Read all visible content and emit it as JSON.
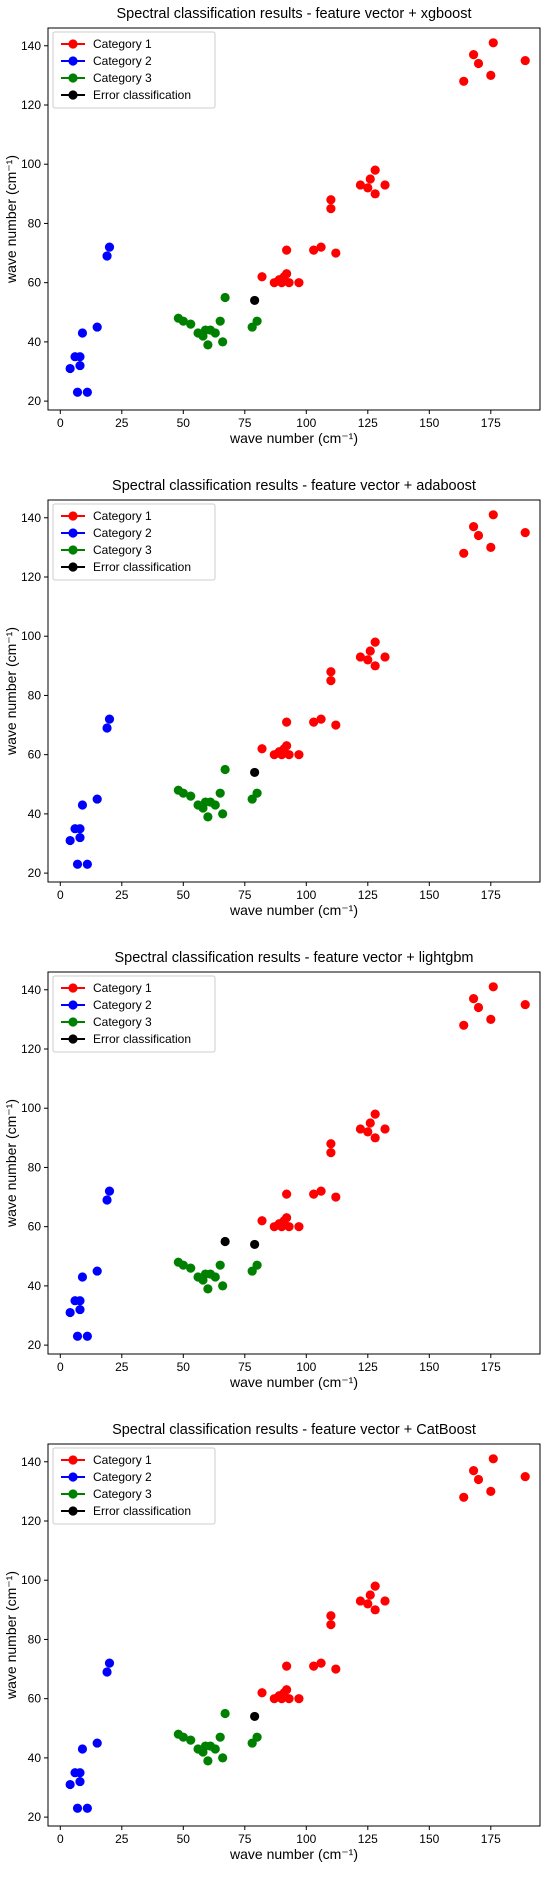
{
  "chart_data": [
    {
      "type": "scatter",
      "title": "Spectral classification results - feature vector + xgboost",
      "xlabel": "wave number (cm⁻¹)",
      "ylabel": "wave number (cm⁻¹)",
      "xlim": [
        -5,
        195
      ],
      "ylim": [
        17,
        146
      ],
      "xticks": [
        0,
        25,
        50,
        75,
        100,
        125,
        150,
        175
      ],
      "yticks": [
        20,
        40,
        60,
        80,
        100,
        120,
        140
      ],
      "grid": false,
      "legend_position": "top-left",
      "series": [
        {
          "name": "Category 1",
          "color": "#ff0000",
          "points": [
            [
              82,
              62
            ],
            [
              87,
              60
            ],
            [
              89,
              61
            ],
            [
              90,
              60
            ],
            [
              91,
              62
            ],
            [
              92,
              63
            ],
            [
              93,
              60
            ],
            [
              92,
              71
            ],
            [
              97,
              60
            ],
            [
              103,
              71
            ],
            [
              106,
              72
            ],
            [
              110,
              85
            ],
            [
              110,
              88
            ],
            [
              112,
              70
            ],
            [
              122,
              93
            ],
            [
              125,
              92
            ],
            [
              126,
              95
            ],
            [
              128,
              90
            ],
            [
              128,
              98
            ],
            [
              132,
              93
            ],
            [
              164,
              128
            ],
            [
              168,
              137
            ],
            [
              170,
              134
            ],
            [
              175,
              130
            ],
            [
              176,
              141
            ],
            [
              189,
              135
            ]
          ]
        },
        {
          "name": "Category 2",
          "color": "#0000ff",
          "points": [
            [
              4,
              31
            ],
            [
              6,
              35
            ],
            [
              7,
              23
            ],
            [
              8,
              35
            ],
            [
              8,
              32
            ],
            [
              9,
              43
            ],
            [
              11,
              23
            ],
            [
              15,
              45
            ],
            [
              19,
              69
            ],
            [
              20,
              72
            ]
          ]
        },
        {
          "name": "Category 3",
          "color": "#008000",
          "points": [
            [
              48,
              48
            ],
            [
              50,
              47
            ],
            [
              53,
              46
            ],
            [
              56,
              43
            ],
            [
              58,
              42
            ],
            [
              59,
              44
            ],
            [
              60,
              39
            ],
            [
              61,
              44
            ],
            [
              63,
              43
            ],
            [
              65,
              47
            ],
            [
              66,
              40
            ],
            [
              67,
              55
            ],
            [
              78,
              45
            ],
            [
              80,
              47
            ]
          ]
        },
        {
          "name": "Error classification",
          "color": "#000000",
          "points": [
            [
              79,
              54
            ]
          ]
        }
      ]
    },
    {
      "type": "scatter",
      "title": "Spectral classification results - feature vector + adaboost",
      "xlabel": "wave number (cm⁻¹)",
      "ylabel": "wave number (cm⁻¹)",
      "xlim": [
        -5,
        195
      ],
      "ylim": [
        17,
        146
      ],
      "xticks": [
        0,
        25,
        50,
        75,
        100,
        125,
        150,
        175
      ],
      "yticks": [
        20,
        40,
        60,
        80,
        100,
        120,
        140
      ],
      "grid": false,
      "legend_position": "top-left",
      "series": [
        {
          "name": "Category 1",
          "color": "#ff0000",
          "points": [
            [
              82,
              62
            ],
            [
              87,
              60
            ],
            [
              89,
              61
            ],
            [
              90,
              60
            ],
            [
              91,
              62
            ],
            [
              92,
              63
            ],
            [
              93,
              60
            ],
            [
              92,
              71
            ],
            [
              97,
              60
            ],
            [
              103,
              71
            ],
            [
              106,
              72
            ],
            [
              110,
              85
            ],
            [
              110,
              88
            ],
            [
              112,
              70
            ],
            [
              122,
              93
            ],
            [
              125,
              92
            ],
            [
              126,
              95
            ],
            [
              128,
              90
            ],
            [
              128,
              98
            ],
            [
              132,
              93
            ],
            [
              164,
              128
            ],
            [
              168,
              137
            ],
            [
              170,
              134
            ],
            [
              175,
              130
            ],
            [
              176,
              141
            ],
            [
              189,
              135
            ]
          ]
        },
        {
          "name": "Category 2",
          "color": "#0000ff",
          "points": [
            [
              4,
              31
            ],
            [
              6,
              35
            ],
            [
              7,
              23
            ],
            [
              8,
              35
            ],
            [
              8,
              32
            ],
            [
              9,
              43
            ],
            [
              11,
              23
            ],
            [
              15,
              45
            ],
            [
              19,
              69
            ],
            [
              20,
              72
            ]
          ]
        },
        {
          "name": "Category 3",
          "color": "#008000",
          "points": [
            [
              48,
              48
            ],
            [
              50,
              47
            ],
            [
              53,
              46
            ],
            [
              56,
              43
            ],
            [
              58,
              42
            ],
            [
              59,
              44
            ],
            [
              60,
              39
            ],
            [
              61,
              44
            ],
            [
              63,
              43
            ],
            [
              65,
              47
            ],
            [
              66,
              40
            ],
            [
              67,
              55
            ],
            [
              78,
              45
            ],
            [
              80,
              47
            ]
          ]
        },
        {
          "name": "Error classification",
          "color": "#000000",
          "points": [
            [
              79,
              54
            ]
          ]
        }
      ]
    },
    {
      "type": "scatter",
      "title": "Spectral classification results - feature vector + lightgbm",
      "xlabel": "wave number (cm⁻¹)",
      "ylabel": "wave number (cm⁻¹)",
      "xlim": [
        -5,
        195
      ],
      "ylim": [
        17,
        146
      ],
      "xticks": [
        0,
        25,
        50,
        75,
        100,
        125,
        150,
        175
      ],
      "yticks": [
        20,
        40,
        60,
        80,
        100,
        120,
        140
      ],
      "grid": false,
      "legend_position": "top-left",
      "series": [
        {
          "name": "Category 1",
          "color": "#ff0000",
          "points": [
            [
              82,
              62
            ],
            [
              87,
              60
            ],
            [
              89,
              61
            ],
            [
              90,
              60
            ],
            [
              91,
              62
            ],
            [
              92,
              63
            ],
            [
              93,
              60
            ],
            [
              92,
              71
            ],
            [
              97,
              60
            ],
            [
              103,
              71
            ],
            [
              106,
              72
            ],
            [
              110,
              85
            ],
            [
              110,
              88
            ],
            [
              112,
              70
            ],
            [
              122,
              93
            ],
            [
              125,
              92
            ],
            [
              126,
              95
            ],
            [
              128,
              90
            ],
            [
              128,
              98
            ],
            [
              132,
              93
            ],
            [
              164,
              128
            ],
            [
              168,
              137
            ],
            [
              170,
              134
            ],
            [
              175,
              130
            ],
            [
              176,
              141
            ],
            [
              189,
              135
            ]
          ]
        },
        {
          "name": "Category 2",
          "color": "#0000ff",
          "points": [
            [
              4,
              31
            ],
            [
              6,
              35
            ],
            [
              7,
              23
            ],
            [
              8,
              35
            ],
            [
              8,
              32
            ],
            [
              9,
              43
            ],
            [
              11,
              23
            ],
            [
              15,
              45
            ],
            [
              19,
              69
            ],
            [
              20,
              72
            ]
          ]
        },
        {
          "name": "Category 3",
          "color": "#008000",
          "points": [
            [
              48,
              48
            ],
            [
              50,
              47
            ],
            [
              53,
              46
            ],
            [
              56,
              43
            ],
            [
              58,
              42
            ],
            [
              59,
              44
            ],
            [
              60,
              39
            ],
            [
              61,
              44
            ],
            [
              63,
              43
            ],
            [
              65,
              47
            ],
            [
              66,
              40
            ],
            [
              78,
              45
            ],
            [
              80,
              47
            ]
          ]
        },
        {
          "name": "Error classification",
          "color": "#000000",
          "points": [
            [
              67,
              55
            ],
            [
              79,
              54
            ]
          ]
        }
      ]
    },
    {
      "type": "scatter",
      "title": "Spectral classification results - feature vector + CatBoost",
      "xlabel": "wave number (cm⁻¹)",
      "ylabel": "wave number (cm⁻¹)",
      "xlim": [
        -5,
        195
      ],
      "ylim": [
        17,
        146
      ],
      "xticks": [
        0,
        25,
        50,
        75,
        100,
        125,
        150,
        175
      ],
      "yticks": [
        20,
        40,
        60,
        80,
        100,
        120,
        140
      ],
      "grid": false,
      "legend_position": "top-left",
      "series": [
        {
          "name": "Category 1",
          "color": "#ff0000",
          "points": [
            [
              82,
              62
            ],
            [
              87,
              60
            ],
            [
              89,
              61
            ],
            [
              90,
              60
            ],
            [
              91,
              62
            ],
            [
              92,
              63
            ],
            [
              93,
              60
            ],
            [
              92,
              71
            ],
            [
              97,
              60
            ],
            [
              103,
              71
            ],
            [
              106,
              72
            ],
            [
              110,
              85
            ],
            [
              110,
              88
            ],
            [
              112,
              70
            ],
            [
              122,
              93
            ],
            [
              125,
              92
            ],
            [
              126,
              95
            ],
            [
              128,
              90
            ],
            [
              128,
              98
            ],
            [
              132,
              93
            ],
            [
              164,
              128
            ],
            [
              168,
              137
            ],
            [
              170,
              134
            ],
            [
              175,
              130
            ],
            [
              176,
              141
            ],
            [
              189,
              135
            ]
          ]
        },
        {
          "name": "Category 2",
          "color": "#0000ff",
          "points": [
            [
              4,
              31
            ],
            [
              6,
              35
            ],
            [
              7,
              23
            ],
            [
              8,
              35
            ],
            [
              8,
              32
            ],
            [
              9,
              43
            ],
            [
              11,
              23
            ],
            [
              15,
              45
            ],
            [
              19,
              69
            ],
            [
              20,
              72
            ]
          ]
        },
        {
          "name": "Category 3",
          "color": "#008000",
          "points": [
            [
              48,
              48
            ],
            [
              50,
              47
            ],
            [
              53,
              46
            ],
            [
              56,
              43
            ],
            [
              58,
              42
            ],
            [
              59,
              44
            ],
            [
              60,
              39
            ],
            [
              61,
              44
            ],
            [
              63,
              43
            ],
            [
              65,
              47
            ],
            [
              66,
              40
            ],
            [
              67,
              55
            ],
            [
              78,
              45
            ],
            [
              80,
              47
            ]
          ]
        },
        {
          "name": "Error classification",
          "color": "#000000",
          "points": [
            [
              79,
              54
            ]
          ]
        }
      ]
    }
  ]
}
